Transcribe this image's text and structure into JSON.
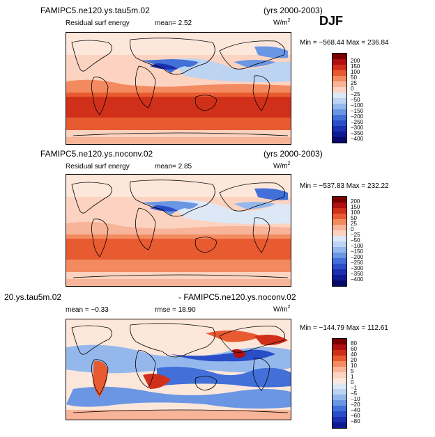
{
  "season": "DJF",
  "panels": [
    {
      "title": "FAMIPC5.ne120.ys.tau5m.02",
      "years": "(yrs 2000-2003)",
      "variable": "Residual surf energy",
      "stat1": "mean=    2.52",
      "units": "W/m",
      "units_exp": "2",
      "minmax": "Min = −568.44  Max = 236.84",
      "colorbar_labels": [
        "200",
        "150",
        "100",
        "50",
        "25",
        "0",
        "−25",
        "−50",
        "−100",
        "−150",
        "−200",
        "−250",
        "−300",
        "−350",
        "−400"
      ]
    },
    {
      "title": "FAMIPC5.ne120.ys.noconv.02",
      "years": "(yrs 2000-2003)",
      "variable": "Residual surf energy",
      "stat1": "mean=    2.85",
      "units": "W/m",
      "units_exp": "2",
      "minmax": "Min = −537.83  Max = 232.22",
      "colorbar_labels": [
        "200",
        "150",
        "100",
        "50",
        "25",
        "0",
        "−25",
        "−50",
        "−100",
        "−150",
        "−200",
        "−250",
        "−300",
        "−350",
        "−400"
      ]
    },
    {
      "title_left": "20.ys.tau5m.02",
      "title_right": "- FAMIPC5.ne120.ys.noconv.02",
      "stat1": "mean =   −0.33",
      "stat2": "rmse =   18.90",
      "units": "W/m",
      "units_exp": "2",
      "minmax": "Min = −144.79  Max = 112.61",
      "colorbar_labels": [
        "80",
        "60",
        "40",
        "20",
        "10",
        "5",
        "1",
        "0",
        "−1",
        "−5",
        "−10",
        "−20",
        "−40",
        "−60",
        "−80"
      ]
    }
  ],
  "colors": {
    "scale_a": [
      "#7a0000",
      "#b01010",
      "#d0301a",
      "#e85a30",
      "#f48a60",
      "#f8b498",
      "#fbd3c0",
      "#dde8f6",
      "#bcd4f2",
      "#94b8ec",
      "#6a96e4",
      "#4270d8",
      "#2a4ec8",
      "#1a30b0",
      "#0e1a90",
      "#060a6a"
    ],
    "scale_b": [
      "#7a0000",
      "#b01010",
      "#d0301a",
      "#e85a30",
      "#f48a60",
      "#f8b498",
      "#fbd3c0",
      "#fde6da",
      "#dde8f6",
      "#bcd4f2",
      "#94b8ec",
      "#6a96e4",
      "#4270d8",
      "#2a4ec8",
      "#1a30b0",
      "#0e1a90"
    ]
  }
}
